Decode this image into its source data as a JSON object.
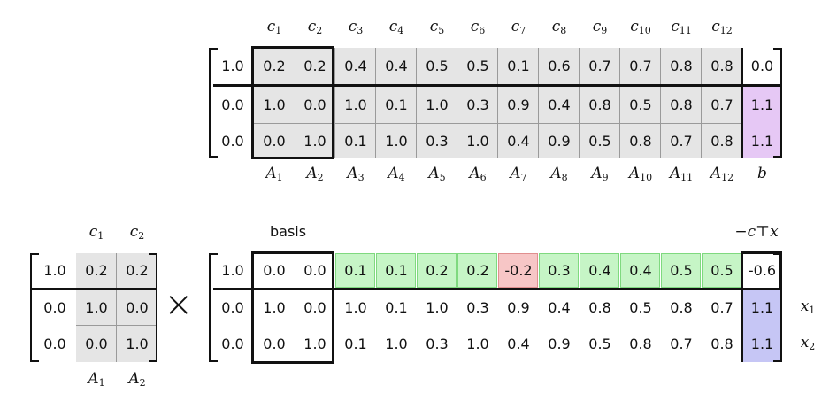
{
  "top": {
    "col_labels": [
      [
        "c",
        "1"
      ],
      [
        "c",
        "2"
      ],
      [
        "c",
        "3"
      ],
      [
        "c",
        "4"
      ],
      [
        "c",
        "5"
      ],
      [
        "c",
        "6"
      ],
      [
        "c",
        "7"
      ],
      [
        "c",
        "8"
      ],
      [
        "c",
        "9"
      ],
      [
        "c",
        "10"
      ],
      [
        "c",
        "11"
      ],
      [
        "c",
        "12"
      ]
    ],
    "bottom_labels": [
      [
        "A",
        "1"
      ],
      [
        "A",
        "2"
      ],
      [
        "A",
        "3"
      ],
      [
        "A",
        "4"
      ],
      [
        "A",
        "5"
      ],
      [
        "A",
        "6"
      ],
      [
        "A",
        "7"
      ],
      [
        "A",
        "8"
      ],
      [
        "A",
        "9"
      ],
      [
        "A",
        "10"
      ],
      [
        "A",
        "11"
      ],
      [
        "A",
        "12"
      ],
      [
        "b",
        ""
      ]
    ],
    "rows": [
      [
        "1.0",
        "0.2",
        "0.2",
        "0.4",
        "0.4",
        "0.5",
        "0.5",
        "0.1",
        "0.6",
        "0.7",
        "0.7",
        "0.8",
        "0.8",
        "0.0"
      ],
      [
        "0.0",
        "1.0",
        "0.0",
        "1.0",
        "0.1",
        "1.0",
        "0.3",
        "0.9",
        "0.4",
        "0.8",
        "0.5",
        "0.8",
        "0.7",
        "1.1"
      ],
      [
        "0.0",
        "0.0",
        "1.0",
        "0.1",
        "1.0",
        "0.3",
        "1.0",
        "0.4",
        "0.9",
        "0.5",
        "0.8",
        "0.7",
        "0.8",
        "1.1"
      ]
    ]
  },
  "basis_matrix": {
    "col_labels": [
      [
        "c",
        "1"
      ],
      [
        "c",
        "2"
      ]
    ],
    "bottom_labels": [
      [
        "A",
        "1"
      ],
      [
        "A",
        "2"
      ]
    ],
    "rows": [
      [
        "1.0",
        "0.2",
        "0.2"
      ],
      [
        "0.0",
        "1.0",
        "0.0"
      ],
      [
        "0.0",
        "0.0",
        "1.0"
      ]
    ]
  },
  "times_symbol": "×",
  "result": {
    "basis_label": "basis",
    "objective_label": "−c⊤x",
    "row_labels": [
      [
        "x",
        "1"
      ],
      [
        "x",
        "2"
      ]
    ],
    "rows": [
      [
        "1.0",
        "0.0",
        "0.0",
        "0.1",
        "0.1",
        "0.2",
        "0.2",
        "-0.2",
        "0.3",
        "0.4",
        "0.4",
        "0.5",
        "0.5",
        "-0.6"
      ],
      [
        "0.0",
        "1.0",
        "0.0",
        "1.0",
        "0.1",
        "1.0",
        "0.3",
        "0.9",
        "0.4",
        "0.8",
        "0.5",
        "0.8",
        "0.7",
        "1.1"
      ],
      [
        "0.0",
        "0.0",
        "1.0",
        "0.1",
        "1.0",
        "0.3",
        "1.0",
        "0.4",
        "0.9",
        "0.5",
        "0.8",
        "0.7",
        "0.8",
        "1.1"
      ]
    ]
  },
  "colors": {
    "gray": "#e5e5e5",
    "violet": "#e6c8f5",
    "green": "#c6f5c6",
    "red": "#f7c6c6",
    "blue": "#c6c6f5"
  }
}
